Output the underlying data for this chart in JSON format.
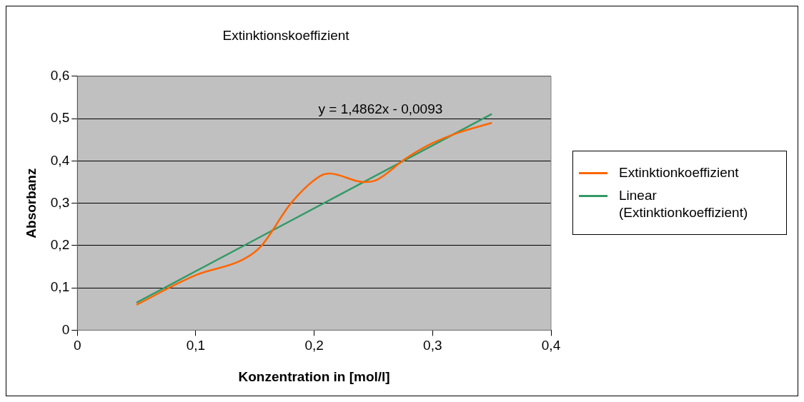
{
  "chart_data": {
    "type": "line",
    "title": "Extinktionskoeffizient",
    "xlabel": "Konzentration in [mol/l]",
    "ylabel": "Absorbanz",
    "xlim": [
      0,
      0.4
    ],
    "xticks": [
      0,
      {
        "value": 0.1,
        "label": "0,1"
      },
      {
        "value": 0.2,
        "label": "0,2"
      },
      {
        "value": 0.3,
        "label": "0,3"
      },
      {
        "value": 0.4,
        "label": "0,4"
      }
    ],
    "ylim": [
      0,
      0.6
    ],
    "yticks": [
      0,
      {
        "value": 0.1,
        "label": "0,1"
      },
      {
        "value": 0.2,
        "label": "0,2"
      },
      {
        "value": 0.3,
        "label": "0,3"
      },
      {
        "value": 0.4,
        "label": "0,4"
      },
      {
        "value": 0.5,
        "label": "0,5"
      },
      {
        "value": 0.6,
        "label": "0,6"
      }
    ],
    "grid": "y",
    "legend": "right",
    "marker": "none",
    "series": [
      {
        "name": "Extinktionkoeffizient",
        "color": "#ff6600",
        "x": [
          0.05,
          0.1,
          0.14,
          0.155,
          0.181,
          0.205,
          0.213,
          0.242,
          0.251,
          0.278,
          0.3,
          0.32,
          0.35
        ],
        "values": [
          0.06,
          0.13,
          0.167,
          0.198,
          0.302,
          0.364,
          0.37,
          0.35,
          0.353,
          0.407,
          0.442,
          0.465,
          0.49
        ]
      },
      {
        "name": "Linear (Extinktionkoeffizient)",
        "type": "line",
        "color": "#339966",
        "x": [
          0.05,
          0.35
        ],
        "values": [
          0.065,
          0.511
        ]
      }
    ],
    "annotations": [
      "y = 1,4862x - 0,0093"
    ]
  }
}
